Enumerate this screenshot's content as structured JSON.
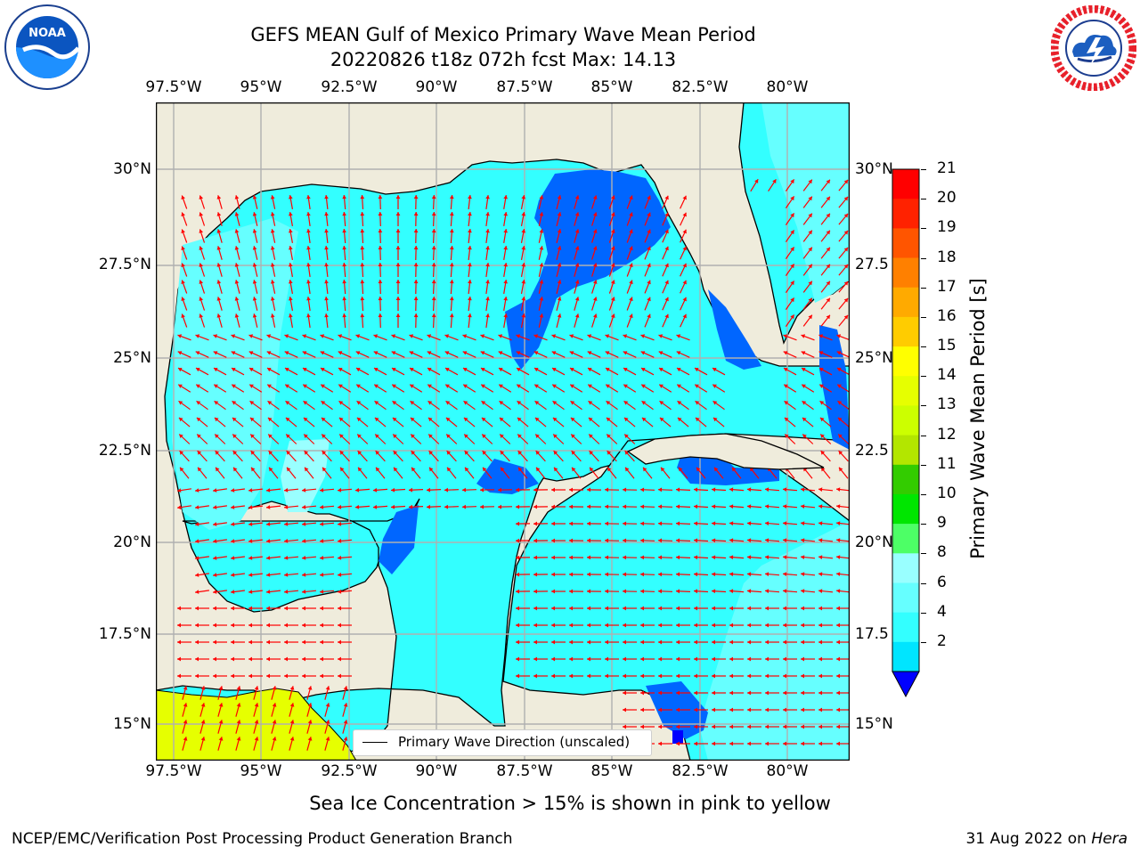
{
  "title": {
    "line1": "GEFS MEAN Gulf of Mexico Primary Wave Mean Period",
    "line2": "20220826 t18z 072h fcst   Max: 14.13"
  },
  "logos": {
    "left": {
      "name": "noaa-logo",
      "text": "NOAA"
    },
    "right": {
      "name": "nws-logo"
    }
  },
  "map": {
    "lon_labels": [
      "97.5°W",
      "95°W",
      "92.5°W",
      "90°W",
      "87.5°W",
      "85°W",
      "82.5°W",
      "80°W"
    ],
    "lat_labels": [
      "30°N",
      "27.5°N",
      "25°N",
      "22.5°N",
      "20°N",
      "17.5°N",
      "15°N"
    ],
    "right_lat_labels": [
      "30°N",
      "27.5",
      "25°N",
      "22.5",
      "20°N",
      "17.5",
      "15°N"
    ],
    "colors": {
      "land": "#efecdc",
      "gridline": "#b0b0b0",
      "arrow": "#ff0000",
      "coastline": "#000000",
      "ice_yellow": "#e6ff00"
    },
    "legend": "Primary Wave Direction (unscaled)"
  },
  "colorbar": {
    "label": "Primary Wave Mean Period [s]",
    "ticks": [
      "2",
      "4",
      "6",
      "8",
      "9",
      "10",
      "11",
      "12",
      "13",
      "14",
      "15",
      "16",
      "17",
      "18",
      "19",
      "20",
      "21"
    ],
    "colors": [
      "#0066ff",
      "#00e5ff",
      "#33ffff",
      "#66ffff",
      "#99ffff",
      "#4dff66",
      "#00e600",
      "#33cc00",
      "#b3e600",
      "#ccff00",
      "#e6ff00",
      "#ffff00",
      "#ffcc00",
      "#ffaa00",
      "#ff8000",
      "#ff5500",
      "#ff2200",
      "#ff0000"
    ],
    "under_color": "#0000ff"
  },
  "note": "Sea Ice Concentration > 15% is shown in pink to yellow",
  "footer": {
    "left": "NCEP/EMC/Verification Post Processing Product Generation Branch",
    "right_date": "31 Aug 2022 on",
    "right_host": "Hera"
  }
}
